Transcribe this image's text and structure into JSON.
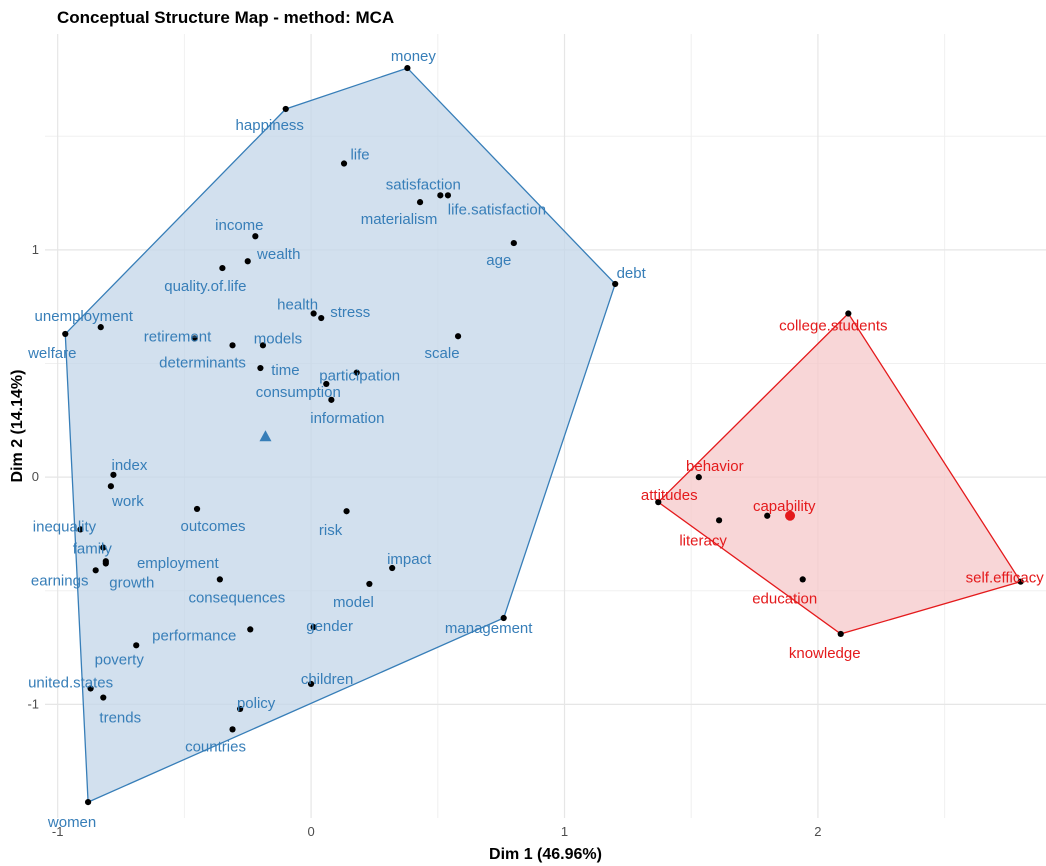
{
  "chart_data": {
    "type": "scatter",
    "title": "Conceptual Structure Map - method: MCA",
    "xlabel": "Dim 1 (46.96%)",
    "ylabel": "Dim 2 (14.14%)",
    "xlim": [
      -1.05,
      2.9
    ],
    "ylim": [
      -1.5,
      1.95
    ],
    "x_ticks": [
      -1,
      0,
      1,
      2
    ],
    "y_ticks": [
      -1,
      0,
      1
    ],
    "grid": true,
    "colors": {
      "cluster1": "#377eb8",
      "cluster2": "#e41a1c",
      "point": "#000000"
    },
    "clusters": [
      {
        "id": 1,
        "color": "#377eb8",
        "fill": "#c3d6e8",
        "centroid": {
          "x": -0.18,
          "y": 0.18,
          "marker": "triangle"
        },
        "hull": [
          [
            0.38,
            1.8
          ],
          [
            -0.1,
            1.62
          ],
          [
            -0.97,
            0.63
          ],
          [
            -0.88,
            -1.43
          ],
          [
            0.76,
            -0.62
          ],
          [
            1.2,
            0.85
          ]
        ],
        "points": [
          {
            "label": "money",
            "x": 0.38,
            "y": 1.8
          },
          {
            "label": "happiness",
            "x": -0.1,
            "y": 1.62
          },
          {
            "label": "life",
            "x": 0.13,
            "y": 1.38
          },
          {
            "label": "satisfaction",
            "x": 0.51,
            "y": 1.24
          },
          {
            "label": "life.satisfaction",
            "x": 0.54,
            "y": 1.24
          },
          {
            "label": "materialism",
            "x": 0.43,
            "y": 1.21
          },
          {
            "label": "income",
            "x": -0.22,
            "y": 1.06
          },
          {
            "label": "wealth",
            "x": -0.25,
            "y": 0.95
          },
          {
            "label": "age",
            "x": 0.8,
            "y": 1.03
          },
          {
            "label": "debt",
            "x": 1.2,
            "y": 0.85
          },
          {
            "label": "quality.of.life",
            "x": -0.35,
            "y": 0.92
          },
          {
            "label": "unemployment",
            "x": -0.83,
            "y": 0.66
          },
          {
            "label": "health",
            "x": 0.01,
            "y": 0.72
          },
          {
            "label": "welfare",
            "x": -0.97,
            "y": 0.63
          },
          {
            "label": "retirement",
            "x": -0.46,
            "y": 0.61
          },
          {
            "label": "models",
            "x": -0.19,
            "y": 0.58
          },
          {
            "label": "stress",
            "x": 0.04,
            "y": 0.7
          },
          {
            "label": "scale",
            "x": 0.58,
            "y": 0.62
          },
          {
            "label": "determinants",
            "x": -0.31,
            "y": 0.58
          },
          {
            "label": "time",
            "x": -0.2,
            "y": 0.48
          },
          {
            "label": "participation",
            "x": 0.18,
            "y": 0.46
          },
          {
            "label": "consumption",
            "x": 0.06,
            "y": 0.41
          },
          {
            "label": "information",
            "x": 0.08,
            "y": 0.34
          },
          {
            "label": "index",
            "x": -0.78,
            "y": 0.01
          },
          {
            "label": "work",
            "x": -0.79,
            "y": -0.04
          },
          {
            "label": "inequality",
            "x": -0.91,
            "y": -0.23
          },
          {
            "label": "outcomes",
            "x": -0.45,
            "y": -0.14
          },
          {
            "label": "risk",
            "x": 0.14,
            "y": -0.15
          },
          {
            "label": "family",
            "x": -0.82,
            "y": -0.31
          },
          {
            "label": "employment",
            "x": -0.81,
            "y": -0.37
          },
          {
            "label": "impact",
            "x": 0.32,
            "y": -0.4
          },
          {
            "label": "earnings",
            "x": -0.85,
            "y": -0.41
          },
          {
            "label": "growth",
            "x": -0.81,
            "y": -0.38
          },
          {
            "label": "consequences",
            "x": -0.36,
            "y": -0.45
          },
          {
            "label": "model",
            "x": 0.23,
            "y": -0.47
          },
          {
            "label": "gender",
            "x": 0.01,
            "y": -0.66
          },
          {
            "label": "management",
            "x": 0.76,
            "y": -0.62
          },
          {
            "label": "performance",
            "x": -0.24,
            "y": -0.67
          },
          {
            "label": "poverty",
            "x": -0.69,
            "y": -0.74
          },
          {
            "label": "children",
            "x": 0.0,
            "y": -0.91
          },
          {
            "label": "united.states",
            "x": -0.87,
            "y": -0.93
          },
          {
            "label": "trends",
            "x": -0.82,
            "y": -0.97
          },
          {
            "label": "policy",
            "x": -0.28,
            "y": -1.02
          },
          {
            "label": "countries",
            "x": -0.31,
            "y": -1.11
          },
          {
            "label": "women",
            "x": -0.88,
            "y": -1.43
          }
        ]
      },
      {
        "id": 2,
        "color": "#e41a1c",
        "fill": "#f6c8c9",
        "centroid": {
          "x": 1.89,
          "y": -0.17,
          "marker": "circle"
        },
        "hull": [
          [
            2.12,
            0.72
          ],
          [
            1.37,
            -0.11
          ],
          [
            2.09,
            -0.69
          ],
          [
            2.8,
            -0.46
          ]
        ],
        "points": [
          {
            "label": "college.students",
            "x": 2.12,
            "y": 0.72
          },
          {
            "label": "behavior",
            "x": 1.53,
            "y": 0.0
          },
          {
            "label": "attitudes",
            "x": 1.37,
            "y": -0.11
          },
          {
            "label": "capability",
            "x": 1.8,
            "y": -0.17
          },
          {
            "label": "literacy",
            "x": 1.61,
            "y": -0.19
          },
          {
            "label": "self.efficacy",
            "x": 2.8,
            "y": -0.46
          },
          {
            "label": "education",
            "x": 1.94,
            "y": -0.45
          },
          {
            "label": "knowledge",
            "x": 2.09,
            "y": -0.69
          }
        ]
      }
    ]
  }
}
